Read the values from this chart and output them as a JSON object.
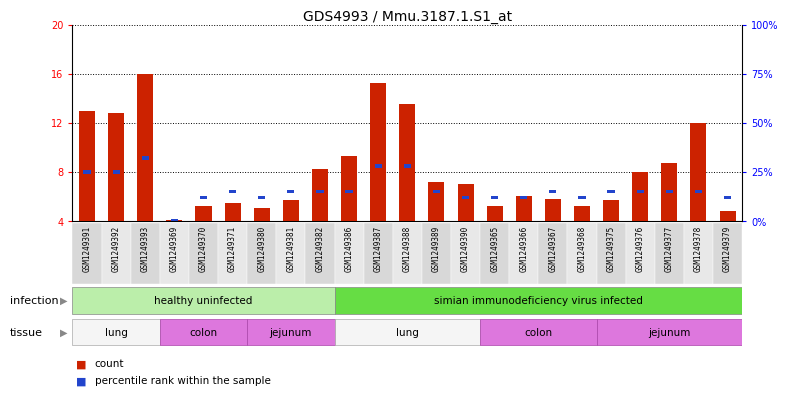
{
  "title": "GDS4993 / Mmu.3187.1.S1_at",
  "samples": [
    "GSM1249391",
    "GSM1249392",
    "GSM1249393",
    "GSM1249369",
    "GSM1249370",
    "GSM1249371",
    "GSM1249380",
    "GSM1249381",
    "GSM1249382",
    "GSM1249386",
    "GSM1249387",
    "GSM1249388",
    "GSM1249389",
    "GSM1249390",
    "GSM1249365",
    "GSM1249366",
    "GSM1249367",
    "GSM1249368",
    "GSM1249375",
    "GSM1249376",
    "GSM1249377",
    "GSM1249378",
    "GSM1249379"
  ],
  "counts": [
    13.0,
    12.8,
    16.0,
    4.1,
    5.2,
    5.5,
    5.1,
    5.7,
    8.2,
    9.3,
    15.2,
    13.5,
    7.2,
    7.0,
    5.2,
    6.0,
    5.8,
    5.2,
    5.7,
    8.0,
    8.7,
    12.0,
    4.8
  ],
  "percentiles": [
    25,
    25,
    32,
    0,
    12,
    15,
    12,
    15,
    15,
    15,
    28,
    28,
    15,
    12,
    12,
    12,
    15,
    12,
    15,
    15,
    15,
    15,
    12
  ],
  "ylim_left": [
    4,
    20
  ],
  "ylim_right": [
    0,
    100
  ],
  "yticks_left": [
    4,
    8,
    12,
    16,
    20
  ],
  "yticks_right": [
    0,
    25,
    50,
    75,
    100
  ],
  "bar_color": "#cc2200",
  "percentile_color": "#2244cc",
  "bar_width": 0.55,
  "infection_groups": [
    {
      "label": "healthy uninfected",
      "start": 0,
      "end": 8,
      "color": "#bbeeaa"
    },
    {
      "label": "simian immunodeficiency virus infected",
      "start": 9,
      "end": 22,
      "color": "#66dd44"
    }
  ],
  "tissue_groups": [
    {
      "label": "lung",
      "start": 0,
      "end": 2,
      "color": "#f5f5f5"
    },
    {
      "label": "colon",
      "start": 3,
      "end": 5,
      "color": "#dd77dd"
    },
    {
      "label": "jejunum",
      "start": 6,
      "end": 8,
      "color": "#dd77dd"
    },
    {
      "label": "lung",
      "start": 9,
      "end": 13,
      "color": "#f5f5f5"
    },
    {
      "label": "colon",
      "start": 14,
      "end": 17,
      "color": "#dd77dd"
    },
    {
      "label": "jejunum",
      "start": 18,
      "end": 22,
      "color": "#dd77dd"
    }
  ],
  "background_color": "#ffffff",
  "plot_bg_color": "#ffffff",
  "xtick_bg_even": "#d8d8d8",
  "xtick_bg_odd": "#e8e8e8",
  "arrow_color": "#888888",
  "title_fontsize": 10,
  "tick_fontsize": 7,
  "sample_fontsize": 5.5,
  "annotation_fontsize": 7.5,
  "row_label_fontsize": 8
}
